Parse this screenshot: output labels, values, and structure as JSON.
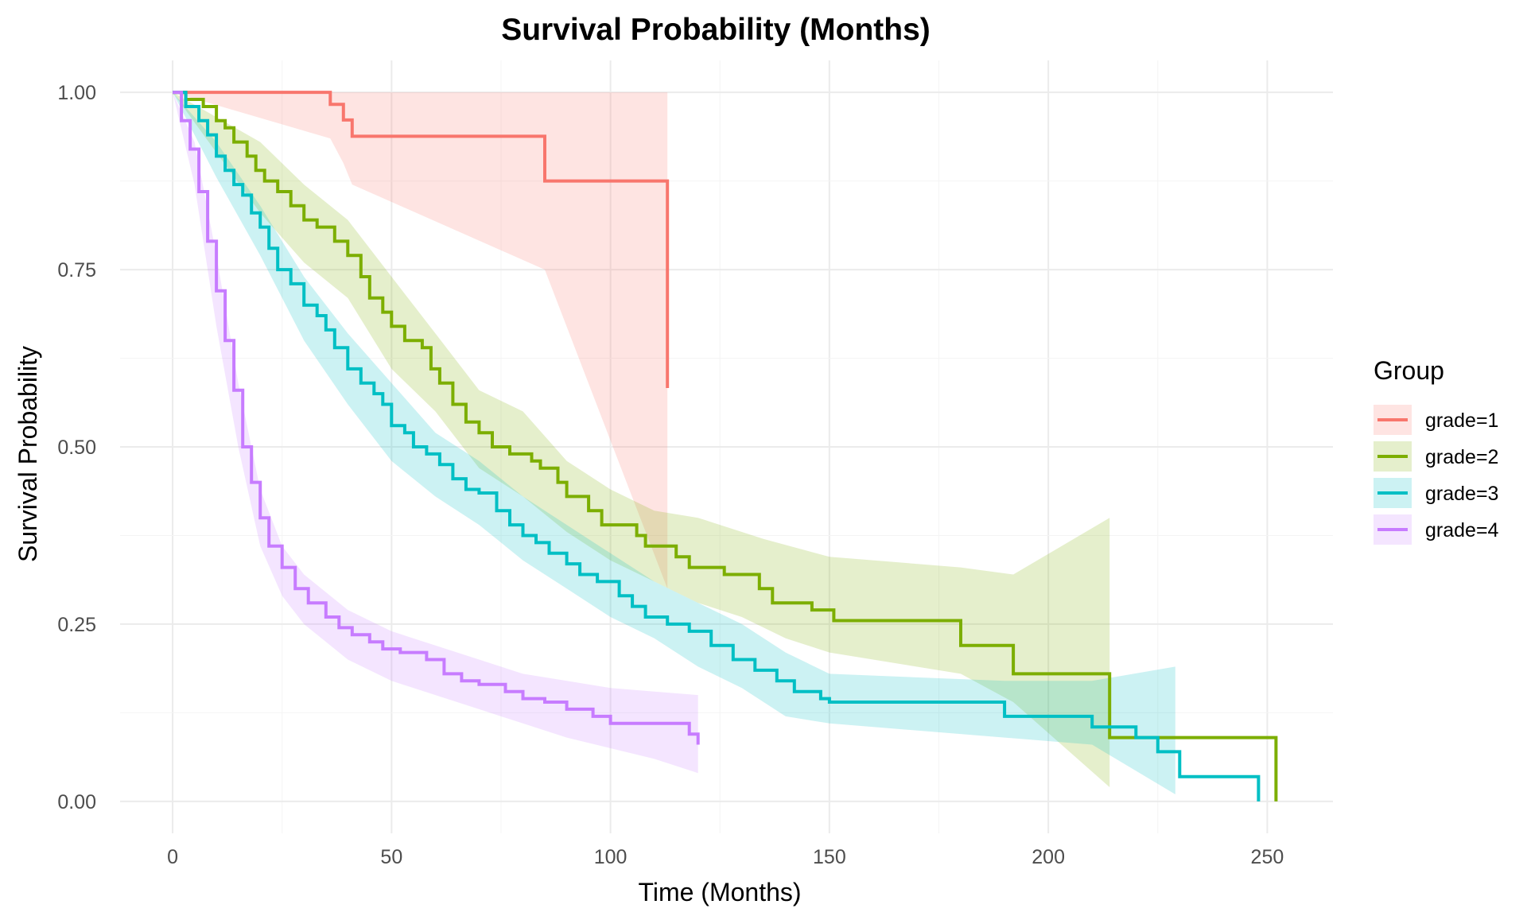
{
  "chart_data": {
    "type": "line",
    "subtype": "kaplan-meier step curves with confidence bands",
    "title": "Survival Probability (Months)",
    "xlabel": "Time (Months)",
    "ylabel": "Survival Probability",
    "xlim": [
      -12,
      265
    ],
    "ylim": [
      -0.045,
      1.045
    ],
    "x_ticks": [
      0,
      50,
      100,
      150,
      200,
      250
    ],
    "x_tick_labels": [
      "0",
      "50",
      "100",
      "150",
      "200",
      "250"
    ],
    "y_ticks": [
      0,
      0.25,
      0.5,
      0.75,
      1
    ],
    "y_tick_labels": [
      "0.00",
      "0.25",
      "0.50",
      "0.75",
      "1.00"
    ],
    "grid": true,
    "legend": {
      "title": "Group",
      "position": "right"
    },
    "series": [
      {
        "name": "grade=1",
        "color": "#F8766D",
        "points": [
          [
            0,
            1.0
          ],
          [
            36,
            0.983
          ],
          [
            39,
            0.961
          ],
          [
            41,
            0.938
          ],
          [
            85,
            0.875
          ],
          [
            113,
            0.583
          ]
        ],
        "lower": [
          [
            0,
            1.0
          ],
          [
            36,
            0.935
          ],
          [
            39,
            0.9
          ],
          [
            41,
            0.87
          ],
          [
            85,
            0.75
          ],
          [
            113,
            0.3
          ]
        ],
        "upper": [
          [
            0,
            1.0
          ],
          [
            113,
            1.0
          ]
        ]
      },
      {
        "name": "grade=2",
        "color": "#7CAE00",
        "points": [
          [
            0,
            1.0
          ],
          [
            3,
            0.99
          ],
          [
            7,
            0.98
          ],
          [
            10,
            0.96
          ],
          [
            12,
            0.95
          ],
          [
            14,
            0.93
          ],
          [
            17,
            0.91
          ],
          [
            19,
            0.89
          ],
          [
            21,
            0.875
          ],
          [
            24,
            0.86
          ],
          [
            27,
            0.84
          ],
          [
            30,
            0.82
          ],
          [
            33,
            0.81
          ],
          [
            37,
            0.79
          ],
          [
            40,
            0.77
          ],
          [
            43,
            0.74
          ],
          [
            45,
            0.71
          ],
          [
            48,
            0.69
          ],
          [
            50,
            0.67
          ],
          [
            53,
            0.65
          ],
          [
            57,
            0.64
          ],
          [
            59,
            0.61
          ],
          [
            61,
            0.59
          ],
          [
            64,
            0.56
          ],
          [
            67,
            0.535
          ],
          [
            70,
            0.52
          ],
          [
            73,
            0.5
          ],
          [
            77,
            0.49
          ],
          [
            82,
            0.48
          ],
          [
            84,
            0.47
          ],
          [
            88,
            0.45
          ],
          [
            90,
            0.43
          ],
          [
            95,
            0.41
          ],
          [
            98,
            0.39
          ],
          [
            106,
            0.375
          ],
          [
            108,
            0.36
          ],
          [
            115,
            0.345
          ],
          [
            118,
            0.33
          ],
          [
            126,
            0.32
          ],
          [
            134,
            0.3
          ],
          [
            137,
            0.28
          ],
          [
            146,
            0.27
          ],
          [
            151,
            0.255
          ],
          [
            180,
            0.22
          ],
          [
            192,
            0.18
          ],
          [
            214,
            0.09
          ],
          [
            250,
            0.09
          ],
          [
            252,
            0.0
          ]
        ],
        "lower": [
          [
            0,
            1.0
          ],
          [
            20,
            0.83
          ],
          [
            30,
            0.76
          ],
          [
            40,
            0.71
          ],
          [
            50,
            0.61
          ],
          [
            60,
            0.55
          ],
          [
            70,
            0.47
          ],
          [
            80,
            0.43
          ],
          [
            90,
            0.38
          ],
          [
            100,
            0.34
          ],
          [
            110,
            0.31
          ],
          [
            120,
            0.28
          ],
          [
            130,
            0.26
          ],
          [
            140,
            0.23
          ],
          [
            150,
            0.21
          ],
          [
            180,
            0.18
          ],
          [
            192,
            0.14
          ],
          [
            214,
            0.02
          ]
        ],
        "upper": [
          [
            0,
            1.0
          ],
          [
            20,
            0.93
          ],
          [
            30,
            0.87
          ],
          [
            40,
            0.82
          ],
          [
            50,
            0.74
          ],
          [
            60,
            0.66
          ],
          [
            70,
            0.58
          ],
          [
            80,
            0.55
          ],
          [
            90,
            0.48
          ],
          [
            100,
            0.44
          ],
          [
            110,
            0.41
          ],
          [
            120,
            0.4
          ],
          [
            135,
            0.37
          ],
          [
            150,
            0.345
          ],
          [
            180,
            0.33
          ],
          [
            192,
            0.32
          ],
          [
            214,
            0.4
          ]
        ]
      },
      {
        "name": "grade=3",
        "color": "#00BFC4",
        "points": [
          [
            0,
            1.0
          ],
          [
            3,
            0.98
          ],
          [
            6,
            0.96
          ],
          [
            8,
            0.94
          ],
          [
            10,
            0.91
          ],
          [
            12,
            0.89
          ],
          [
            14,
            0.87
          ],
          [
            16,
            0.855
          ],
          [
            18,
            0.83
          ],
          [
            20,
            0.81
          ],
          [
            22,
            0.78
          ],
          [
            24,
            0.75
          ],
          [
            27,
            0.73
          ],
          [
            30,
            0.7
          ],
          [
            33,
            0.685
          ],
          [
            35,
            0.665
          ],
          [
            37,
            0.64
          ],
          [
            40,
            0.61
          ],
          [
            43,
            0.59
          ],
          [
            46,
            0.575
          ],
          [
            48,
            0.56
          ],
          [
            50,
            0.53
          ],
          [
            53,
            0.52
          ],
          [
            55,
            0.5
          ],
          [
            58,
            0.49
          ],
          [
            61,
            0.475
          ],
          [
            64,
            0.455
          ],
          [
            67,
            0.44
          ],
          [
            70,
            0.435
          ],
          [
            74,
            0.41
          ],
          [
            77,
            0.39
          ],
          [
            80,
            0.375
          ],
          [
            83,
            0.365
          ],
          [
            86,
            0.35
          ],
          [
            90,
            0.335
          ],
          [
            93,
            0.32
          ],
          [
            97,
            0.31
          ],
          [
            102,
            0.29
          ],
          [
            105,
            0.275
          ],
          [
            108,
            0.26
          ],
          [
            113,
            0.25
          ],
          [
            118,
            0.24
          ],
          [
            123,
            0.22
          ],
          [
            128,
            0.2
          ],
          [
            133,
            0.185
          ],
          [
            138,
            0.17
          ],
          [
            142,
            0.155
          ],
          [
            148,
            0.145
          ],
          [
            150,
            0.14
          ],
          [
            190,
            0.12
          ],
          [
            210,
            0.105
          ],
          [
            220,
            0.09
          ],
          [
            225,
            0.07
          ],
          [
            230,
            0.035
          ],
          [
            248,
            0.0
          ]
        ],
        "lower": [
          [
            0,
            1.0
          ],
          [
            10,
            0.88
          ],
          [
            20,
            0.77
          ],
          [
            30,
            0.65
          ],
          [
            40,
            0.56
          ],
          [
            50,
            0.48
          ],
          [
            60,
            0.43
          ],
          [
            70,
            0.39
          ],
          [
            80,
            0.34
          ],
          [
            90,
            0.3
          ],
          [
            100,
            0.26
          ],
          [
            110,
            0.23
          ],
          [
            120,
            0.19
          ],
          [
            130,
            0.16
          ],
          [
            140,
            0.12
          ],
          [
            150,
            0.11
          ],
          [
            190,
            0.09
          ],
          [
            210,
            0.08
          ],
          [
            229,
            0.01
          ]
        ],
        "upper": [
          [
            0,
            1.0
          ],
          [
            10,
            0.93
          ],
          [
            20,
            0.84
          ],
          [
            30,
            0.74
          ],
          [
            40,
            0.66
          ],
          [
            50,
            0.59
          ],
          [
            60,
            0.52
          ],
          [
            70,
            0.48
          ],
          [
            80,
            0.43
          ],
          [
            90,
            0.39
          ],
          [
            100,
            0.35
          ],
          [
            110,
            0.31
          ],
          [
            120,
            0.28
          ],
          [
            130,
            0.25
          ],
          [
            140,
            0.21
          ],
          [
            150,
            0.18
          ],
          [
            190,
            0.17
          ],
          [
            210,
            0.17
          ],
          [
            229,
            0.19
          ]
        ]
      },
      {
        "name": "grade=4",
        "color": "#C77CFF",
        "points": [
          [
            0,
            1.0
          ],
          [
            2,
            0.96
          ],
          [
            4,
            0.92
          ],
          [
            6,
            0.86
          ],
          [
            8,
            0.79
          ],
          [
            10,
            0.72
          ],
          [
            12,
            0.65
          ],
          [
            14,
            0.58
          ],
          [
            16,
            0.5
          ],
          [
            18,
            0.45
          ],
          [
            20,
            0.4
          ],
          [
            22,
            0.36
          ],
          [
            25,
            0.33
          ],
          [
            28,
            0.3
          ],
          [
            31,
            0.28
          ],
          [
            35,
            0.26
          ],
          [
            38,
            0.245
          ],
          [
            41,
            0.235
          ],
          [
            45,
            0.225
          ],
          [
            48,
            0.215
          ],
          [
            52,
            0.21
          ],
          [
            58,
            0.2
          ],
          [
            62,
            0.18
          ],
          [
            66,
            0.17
          ],
          [
            70,
            0.165
          ],
          [
            76,
            0.155
          ],
          [
            80,
            0.145
          ],
          [
            85,
            0.14
          ],
          [
            90,
            0.13
          ],
          [
            96,
            0.12
          ],
          [
            100,
            0.11
          ],
          [
            118,
            0.095
          ],
          [
            120,
            0.08
          ]
        ],
        "lower": [
          [
            0,
            1.0
          ],
          [
            5,
            0.87
          ],
          [
            10,
            0.67
          ],
          [
            15,
            0.5
          ],
          [
            20,
            0.36
          ],
          [
            25,
            0.29
          ],
          [
            30,
            0.25
          ],
          [
            40,
            0.2
          ],
          [
            50,
            0.17
          ],
          [
            60,
            0.15
          ],
          [
            70,
            0.13
          ],
          [
            80,
            0.11
          ],
          [
            90,
            0.09
          ],
          [
            100,
            0.075
          ],
          [
            110,
            0.06
          ],
          [
            120,
            0.04
          ]
        ],
        "upper": [
          [
            0,
            1.0
          ],
          [
            5,
            0.93
          ],
          [
            10,
            0.77
          ],
          [
            15,
            0.59
          ],
          [
            20,
            0.44
          ],
          [
            25,
            0.36
          ],
          [
            30,
            0.32
          ],
          [
            40,
            0.27
          ],
          [
            50,
            0.24
          ],
          [
            60,
            0.22
          ],
          [
            70,
            0.2
          ],
          [
            80,
            0.18
          ],
          [
            90,
            0.17
          ],
          [
            100,
            0.16
          ],
          [
            110,
            0.155
          ],
          [
            120,
            0.15
          ]
        ]
      }
    ]
  }
}
